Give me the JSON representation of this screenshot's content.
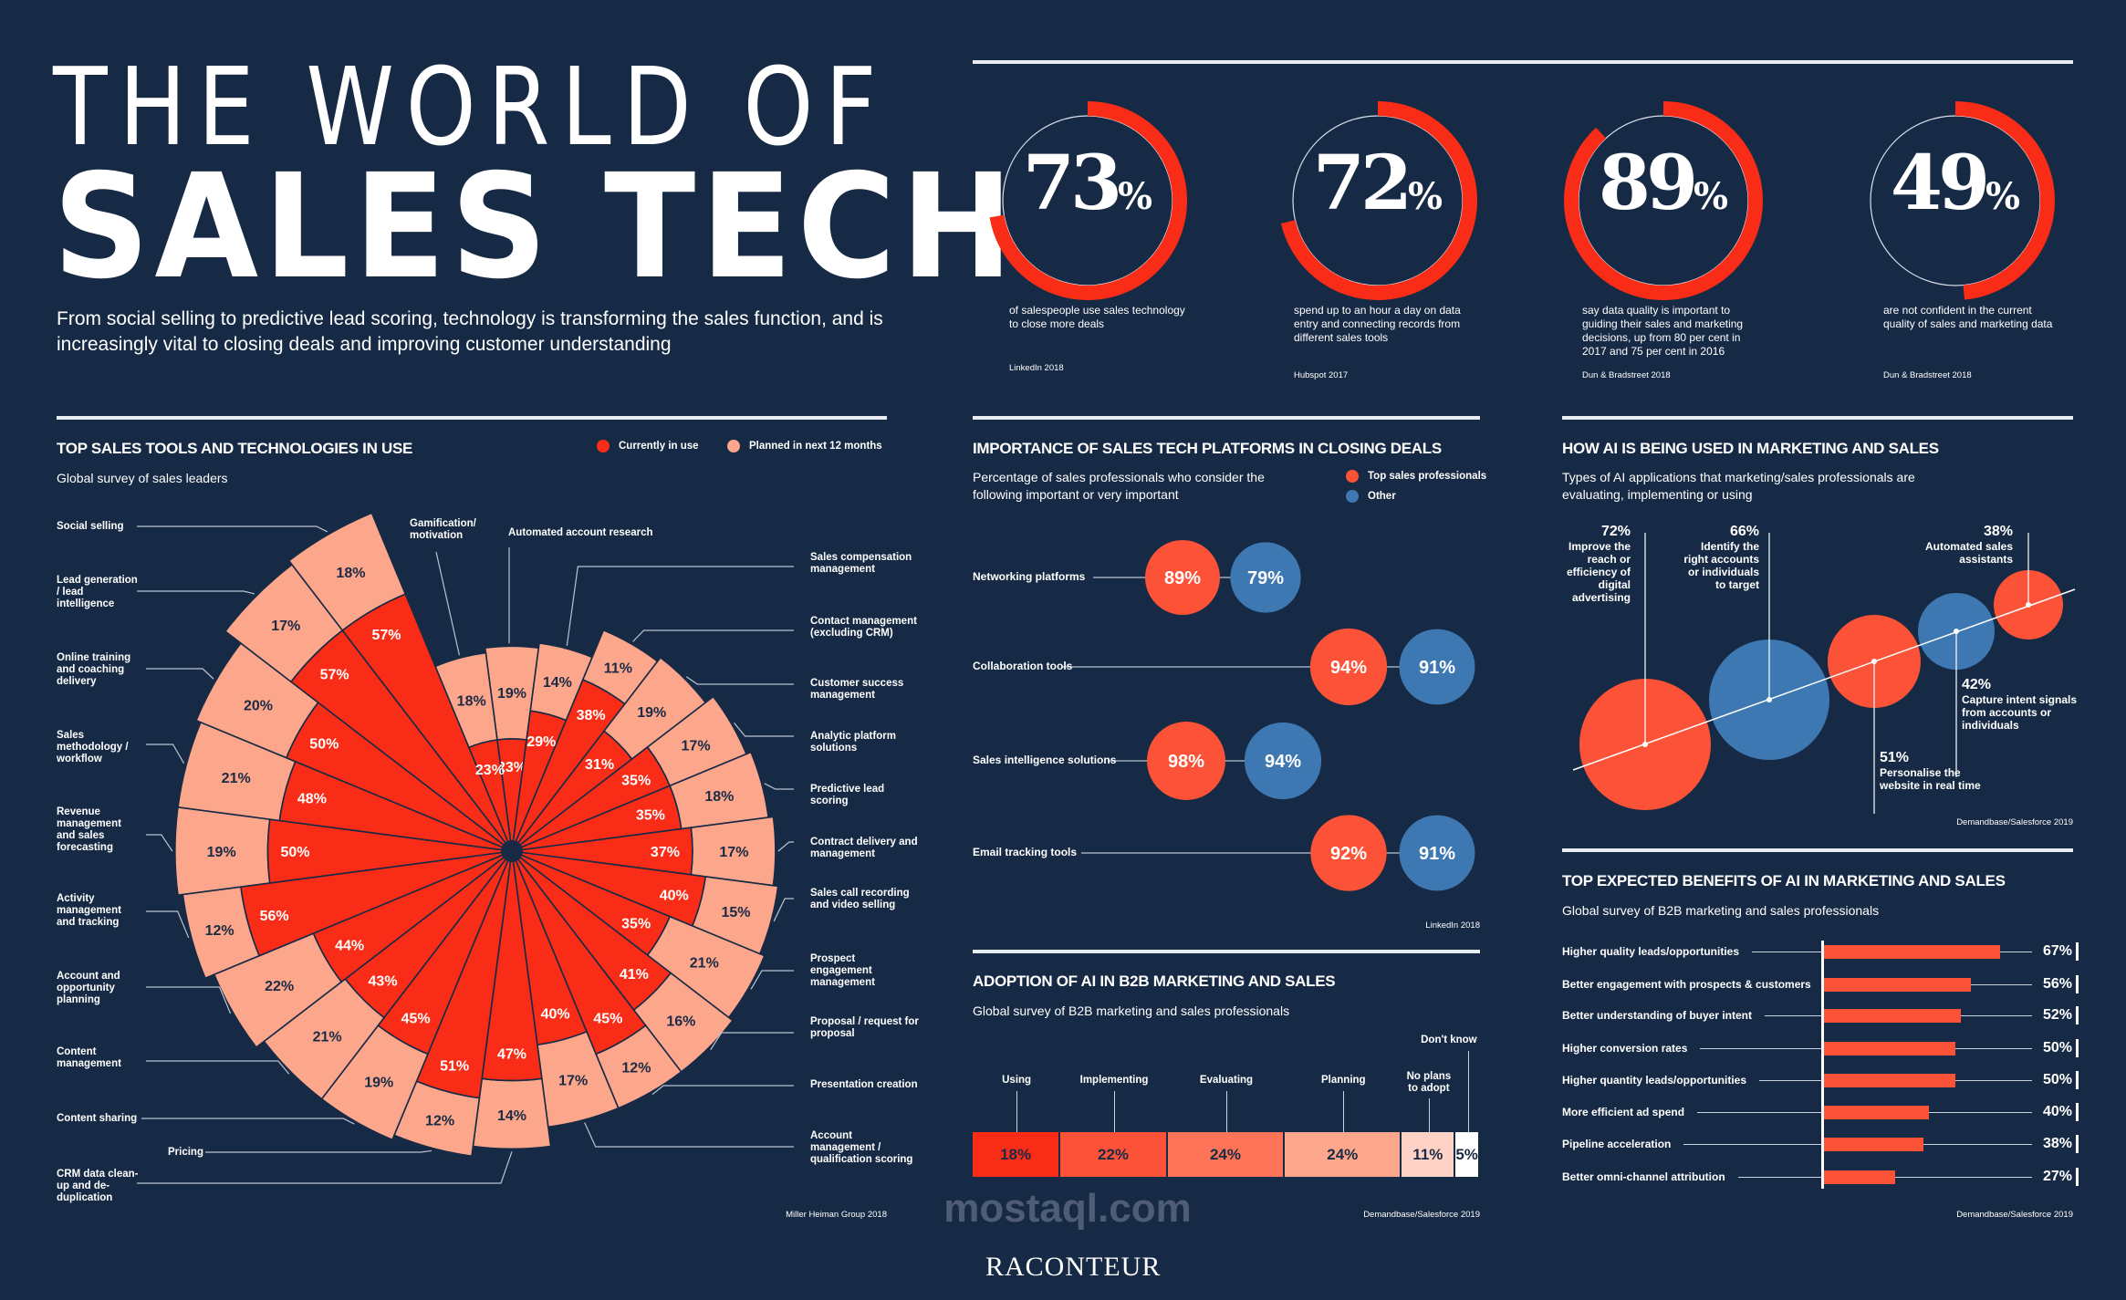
{
  "header": {
    "title_line1": "THE WORLD OF",
    "title_line2": "SALES TECH",
    "intro": "From social selling to predictive lead scoring, technology is transforming the sales function, and is increasingly vital to closing deals and improving customer understanding"
  },
  "colors": {
    "background": "#172a45",
    "red": "#f92d17",
    "coral": "#fc5338",
    "salmon": "#fca68b",
    "blue": "#3e78b2"
  },
  "stats": [
    {
      "value": "73",
      "unit": "%",
      "pct": 73,
      "text": "of salespeople use sales technology to close more deals",
      "source": "LinkedIn 2018"
    },
    {
      "value": "72",
      "unit": "%",
      "pct": 72,
      "text": "spend up to an hour a day on data entry and connecting records from different sales tools",
      "source": "Hubspot 2017"
    },
    {
      "value": "89",
      "unit": "%",
      "pct": 89,
      "text": "say data quality is important to guiding their sales and marketing decisions, up from 80 per cent in 2017 and 75 per cent in 2016",
      "source": "Dun & Bradstreet 2018"
    },
    {
      "value": "49",
      "unit": "%",
      "pct": 49,
      "text": "are not confident in the current quality of sales and marketing data",
      "source": "Dun & Bradstreet 2018"
    }
  ],
  "chart_data": [
    {
      "type": "radial-stacked-bar",
      "title": "TOP SALES TOOLS AND TECHNOLOGIES IN USE",
      "subtitle": "Global survey of sales leaders",
      "source": "Miller Heiman Group 2018",
      "legend_position": "top-right",
      "categories": [
        "Automated account research",
        "Sales compensation management",
        "Contact management (excluding CRM)",
        "Customer success management",
        "Analytic platform solutions",
        "Predictive lead scoring",
        "Contract delivery and management",
        "Sales call recording and video selling",
        "Prospect engagement management",
        "Proposal / request for proposal",
        "Presentation creation",
        "Account management / qualification scoring",
        "CRM data clean-up and de-duplication",
        "Pricing",
        "Content sharing",
        "Content management",
        "Account and opportunity planning",
        "Activity management and tracking",
        "Revenue management and sales forecasting",
        "Sales methodology / workflow",
        "Online training and coaching delivery",
        "Lead generation / lead intelligence",
        "Social selling",
        "Gamification/ motivation"
      ],
      "series": [
        {
          "name": "Currently in use",
          "color": "#f92d17",
          "values": [
            23,
            29,
            38,
            31,
            35,
            35,
            37,
            40,
            35,
            41,
            45,
            40,
            47,
            51,
            45,
            43,
            44,
            56,
            50,
            48,
            50,
            57,
            57,
            23
          ]
        },
        {
          "name": "Planned in next 12 months",
          "color": "#fca68b",
          "values": [
            19,
            14,
            11,
            19,
            17,
            18,
            17,
            15,
            21,
            16,
            12,
            17,
            14,
            12,
            19,
            21,
            22,
            12,
            19,
            21,
            20,
            17,
            18,
            18
          ]
        }
      ]
    },
    {
      "type": "dot-pair",
      "title": "IMPORTANCE OF SALES TECH PLATFORMS IN CLOSING DEALS",
      "subtitle": "Percentage of sales professionals who consider the following important or very important",
      "source": "LinkedIn 2018",
      "legend_position": "top-right",
      "categories": [
        "Networking platforms",
        "Collaboration tools",
        "Sales intelligence solutions",
        "Email tracking tools"
      ],
      "series": [
        {
          "name": "Top sales professionals",
          "color": "#fc5338",
          "values": [
            89,
            94,
            98,
            92
          ]
        },
        {
          "name": "Other",
          "color": "#3e78b2",
          "values": [
            79,
            91,
            94,
            91
          ]
        }
      ]
    },
    {
      "type": "stacked-bar",
      "title": "ADOPTION OF AI IN B2B MARKETING AND SALES",
      "subtitle": "Global survey of B2B marketing and sales professionals",
      "source": "Demandbase/Salesforce 2019",
      "categories": [
        "Using",
        "Implementing",
        "Evaluating",
        "Planning",
        "No plans to adopt",
        "Don't know"
      ],
      "values": [
        18,
        22,
        24,
        24,
        11,
        5
      ],
      "colors": [
        "#f92d17",
        "#fc5338",
        "#fd7458",
        "#fca68b",
        "#fed3c6",
        "#ffffff"
      ]
    },
    {
      "type": "bubble",
      "title": "HOW AI IS BEING USED IN MARKETING AND SALES",
      "subtitle": "Types of AI applications that marketing/sales professionals are evaluating, implementing or using",
      "source": "Demandbase/Salesforce 2019",
      "categories": [
        "Improve the reach or efficiency of digital advertising",
        "Identify the right accounts or individuals to target",
        "Personalise the website in real time",
        "Capture intent signals from accounts or individuals",
        "Automated sales assistants"
      ],
      "values": [
        72,
        66,
        51,
        42,
        38
      ],
      "colors": [
        "#fc5338",
        "#3e78b2",
        "#fc5338",
        "#3e78b2",
        "#fc5338"
      ]
    },
    {
      "type": "bar",
      "orientation": "horizontal",
      "title": "TOP EXPECTED BENEFITS OF AI IN MARKETING AND SALES",
      "subtitle": "Global survey of B2B marketing and sales professionals",
      "source": "Demandbase/Salesforce 2019",
      "categories": [
        "Higher quality leads/opportunities",
        "Better engagement with prospects & customers",
        "Better understanding of buyer intent",
        "Higher conversion rates",
        "Higher quantity leads/opportunities",
        "More efficient ad spend",
        "Pipeline acceleration",
        "Better omni-channel attribution"
      ],
      "values": [
        67,
        56,
        52,
        50,
        50,
        40,
        38,
        27
      ],
      "xlim": [
        0,
        100
      ]
    }
  ],
  "footer": {
    "brand": "RACONTEUR",
    "watermark": "mostaql.com"
  }
}
